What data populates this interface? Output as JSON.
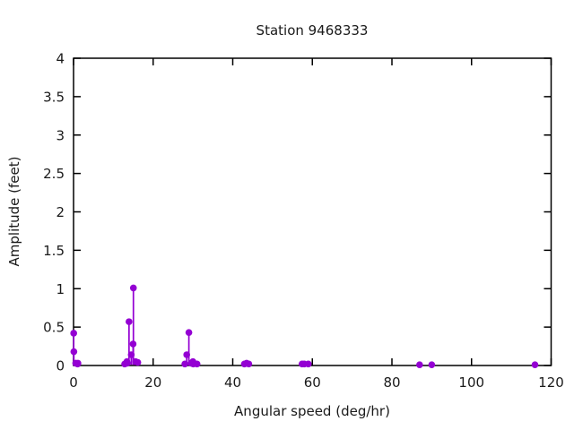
{
  "page": {
    "background": "#ffffff",
    "text_color": "#1a1a1a",
    "accent_color": "#9400d3"
  },
  "chart_data": {
    "type": "scatter",
    "style": "impulses-with-points",
    "title": "Station 9468333",
    "xlabel": "Angular speed (deg/hr)",
    "ylabel": "Amplitude (feet)",
    "xlim": [
      0,
      120
    ],
    "ylim": [
      0,
      4
    ],
    "grid": false,
    "legend": "none",
    "border": "box-with-mirrored-inward-ticks",
    "xticks": {
      "values": [
        0,
        20,
        40,
        60,
        80,
        100,
        120
      ],
      "labels": [
        "0",
        "20",
        "40",
        "60",
        "80",
        "100",
        "120"
      ]
    },
    "yticks": {
      "values": [
        0,
        0.5,
        1,
        1.5,
        2,
        2.5,
        3,
        3.5,
        4
      ],
      "labels": [
        "0",
        "0.5",
        "1",
        "1.5",
        "2",
        "2.5",
        "3",
        "3.5",
        "4"
      ]
    },
    "series": [
      {
        "name": "amplitude",
        "color": "#9400d3",
        "marker": "filled-circle",
        "points": [
          [
            0.04,
            0.42
          ],
          [
            0.08,
            0.18
          ],
          [
            0.54,
            0.03
          ],
          [
            1.02,
            0.02
          ],
          [
            1.1,
            0.03
          ],
          [
            12.85,
            0.02
          ],
          [
            13.4,
            0.05
          ],
          [
            13.47,
            0.03
          ],
          [
            13.94,
            0.57
          ],
          [
            14.5,
            0.14
          ],
          [
            14.96,
            0.28
          ],
          [
            15.04,
            1.01
          ],
          [
            15.58,
            0.05
          ],
          [
            16.14,
            0.04
          ],
          [
            27.97,
            0.02
          ],
          [
            28.44,
            0.14
          ],
          [
            28.98,
            0.43
          ],
          [
            29.53,
            0.03
          ],
          [
            30.0,
            0.05
          ],
          [
            30.08,
            0.02
          ],
          [
            31.02,
            0.02
          ],
          [
            42.93,
            0.02
          ],
          [
            43.48,
            0.03
          ],
          [
            44.03,
            0.02
          ],
          [
            57.42,
            0.02
          ],
          [
            57.97,
            0.02
          ],
          [
            58.98,
            0.02
          ],
          [
            86.95,
            0.01
          ],
          [
            90.0,
            0.01
          ],
          [
            115.94,
            0.01
          ]
        ]
      }
    ]
  }
}
